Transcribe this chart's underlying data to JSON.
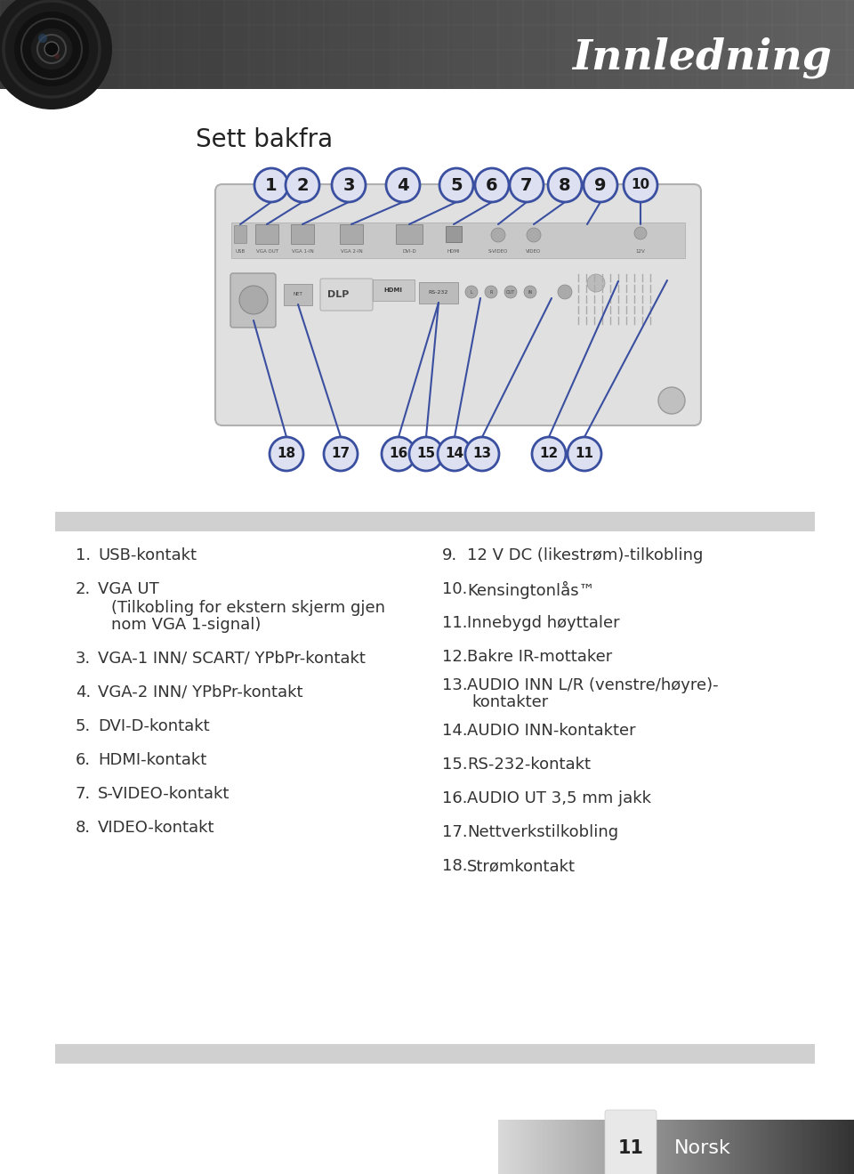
{
  "title": "Innledning",
  "subtitle": "Sett bakfra",
  "bg_color": "#ffffff",
  "header_dark": "#3a3a3a",
  "header_mid": "#555555",
  "footer_text": "Norsk",
  "footer_num": "11",
  "left_items": [
    {
      "num": "1.",
      "text": "USB-kontakt",
      "sub": []
    },
    {
      "num": "2.",
      "text": "VGA UT",
      "sub": [
        "(Tilkobling for ekstern skjerm gjen",
        "nom VGA 1-signal)"
      ]
    },
    {
      "num": "3.",
      "text": "VGA-1 INN/ SCART/ YPbPr-kontakt",
      "sub": []
    },
    {
      "num": "4.",
      "text": "VGA-2 INN/ YPbPr-kontakt",
      "sub": []
    },
    {
      "num": "5.",
      "text": "DVI-D-kontakt",
      "sub": []
    },
    {
      "num": "6.",
      "text": "HDMI-kontakt",
      "sub": []
    },
    {
      "num": "7.",
      "text": "S-VIDEO-kontakt",
      "sub": []
    },
    {
      "num": "8.",
      "text": "VIDEO-kontakt",
      "sub": []
    }
  ],
  "right_items": [
    {
      "num": "9.",
      "text": "12 V DC (likestrøm)-tilkobling",
      "sub": []
    },
    {
      "num": "10.",
      "text": "Kensingtonlås™",
      "sub": []
    },
    {
      "num": "11.",
      "text": "Innebygd høyttaler",
      "sub": []
    },
    {
      "num": "12.",
      "text": "Bakre IR-mottaker",
      "sub": []
    },
    {
      "num": "13.",
      "text": "AUDIO INN L/R (venstre/høyre)-",
      "sub": [
        "kontakter"
      ]
    },
    {
      "num": "14.",
      "text": "AUDIO INN-kontakter",
      "sub": []
    },
    {
      "num": "15.",
      "text": "RS-232-kontakt",
      "sub": []
    },
    {
      "num": "16.",
      "text": "AUDIO UT 3,5 mm jakk",
      "sub": []
    },
    {
      "num": "17.",
      "text": "Nettverkstilkobling",
      "sub": []
    },
    {
      "num": "18.",
      "text": "Strømkontakt",
      "sub": []
    }
  ],
  "circle_fill": "#dde0f0",
  "circle_edge": "#3a4fa0",
  "line_color": "#3a4fa0",
  "text_color": "#333333",
  "table_gray": "#d0d0d0"
}
